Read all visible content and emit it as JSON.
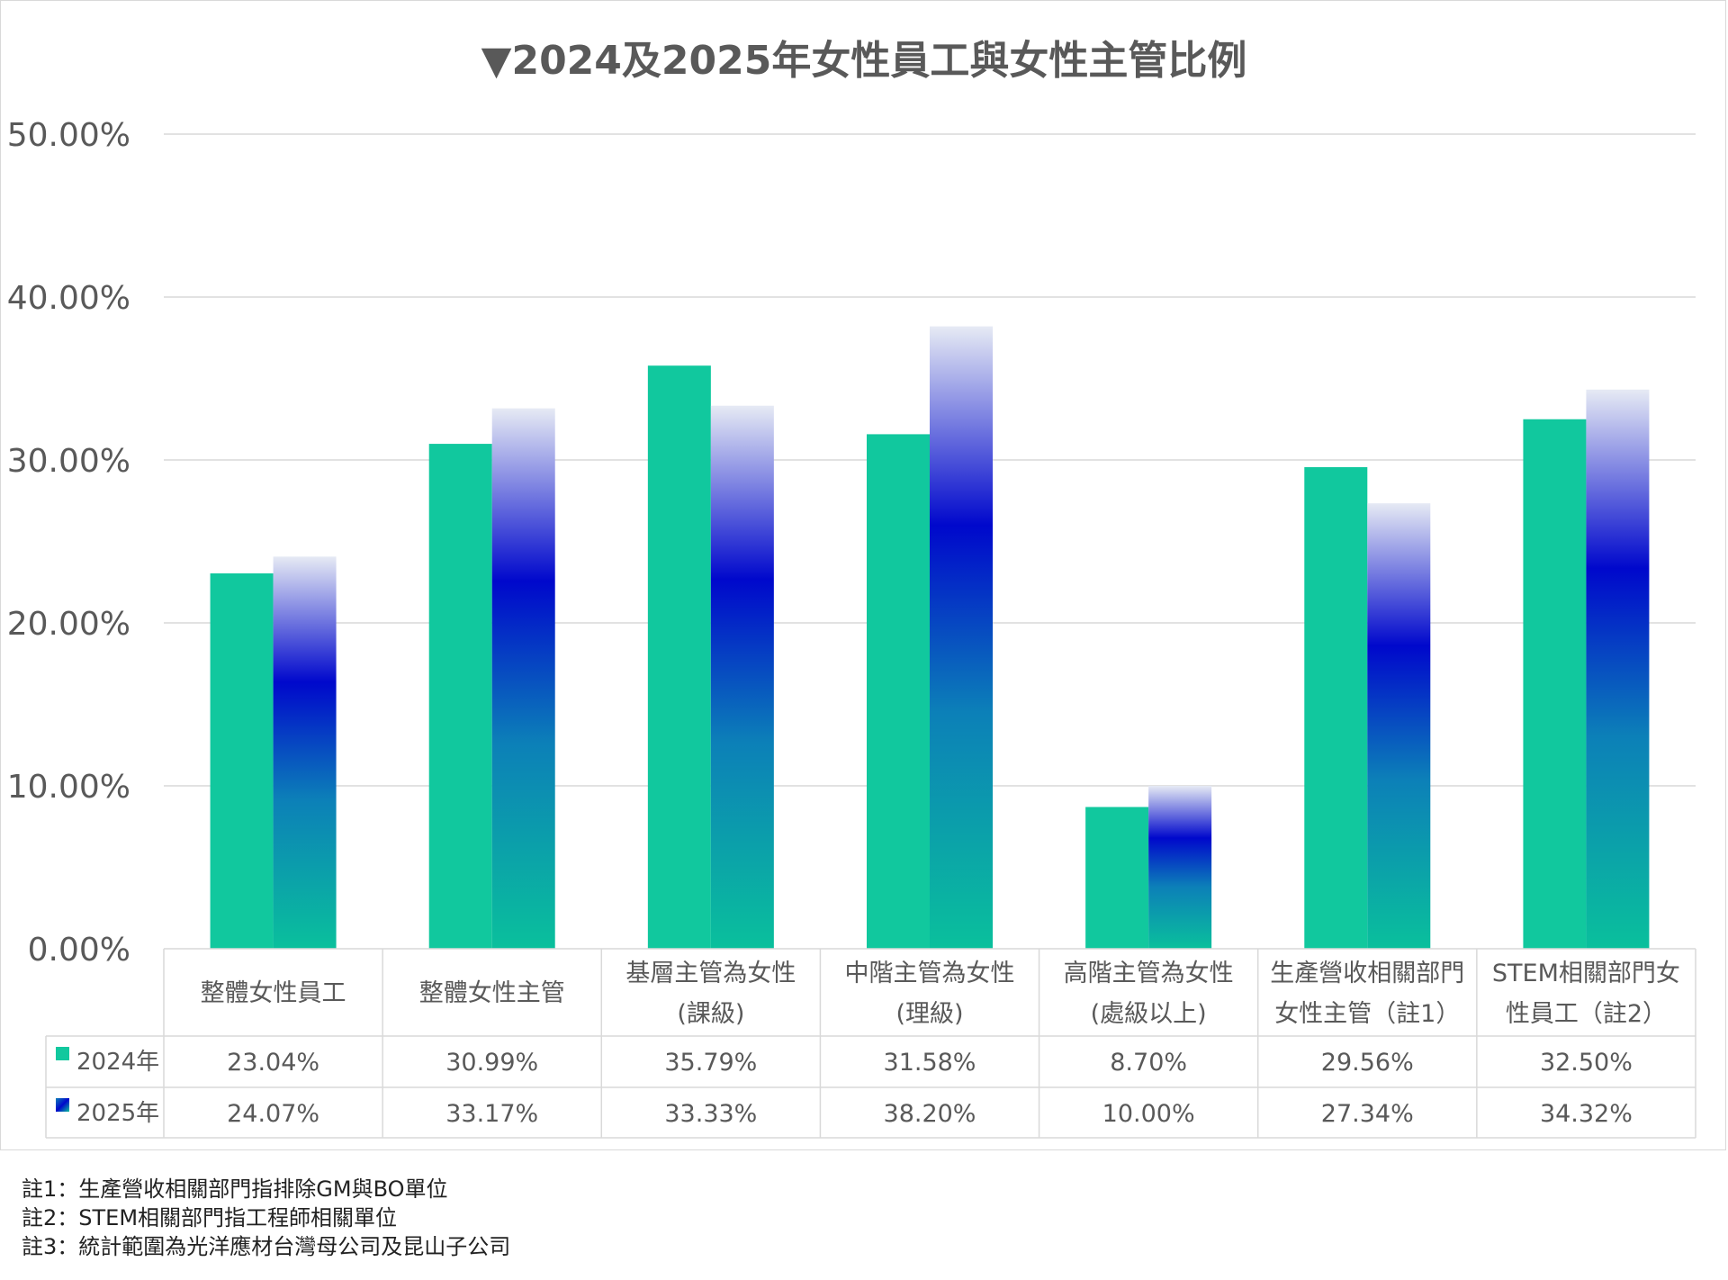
{
  "chart_data": {
    "type": "bar",
    "title": "▼2024及2025年女性員工與女性主管比例",
    "categories": [
      [
        "整體女性員工"
      ],
      [
        "整體女性主管"
      ],
      [
        "基層主管為女性",
        "(課級)"
      ],
      [
        "中階主管為女性",
        "(理級)"
      ],
      [
        "高階主管為女性",
        "(處級以上)"
      ],
      [
        "生產營收相關部門",
        "女性主管（註1）"
      ],
      [
        "STEM相關部門女",
        "性員工（註2）"
      ]
    ],
    "series": [
      {
        "name": "2024年",
        "values": [
          23.04,
          30.99,
          35.79,
          31.58,
          8.7,
          29.56,
          32.5
        ],
        "labels": [
          "23.04%",
          "30.99%",
          "35.79%",
          "31.58%",
          "8.70%",
          "29.56%",
          "32.50%"
        ],
        "color": "#11c89e"
      },
      {
        "name": "2025年",
        "values": [
          24.07,
          33.17,
          33.33,
          38.2,
          10.0,
          27.34,
          34.32
        ],
        "labels": [
          "24.07%",
          "33.17%",
          "33.33%",
          "38.20%",
          "10.00%",
          "27.34%",
          "34.32%"
        ],
        "gradient": [
          "#e6eaf4",
          "#0008cc",
          "#0c80b8",
          "#0ac09c"
        ]
      }
    ],
    "yticks": [
      "0.00%",
      "10.00%",
      "20.00%",
      "30.00%",
      "40.00%",
      "50.00%"
    ],
    "ylim": [
      0,
      50
    ],
    "grid": true,
    "legend": "data-table",
    "gridline_color": "#d9d9d9",
    "text_color": "#595959"
  },
  "notes": [
    "註1：生產營收相關部門指排除GM與BO單位",
    "註2：STEM相關部門指工程師相關單位",
    "註3：統計範圍為光洋應材台灣母公司及昆山子公司"
  ]
}
